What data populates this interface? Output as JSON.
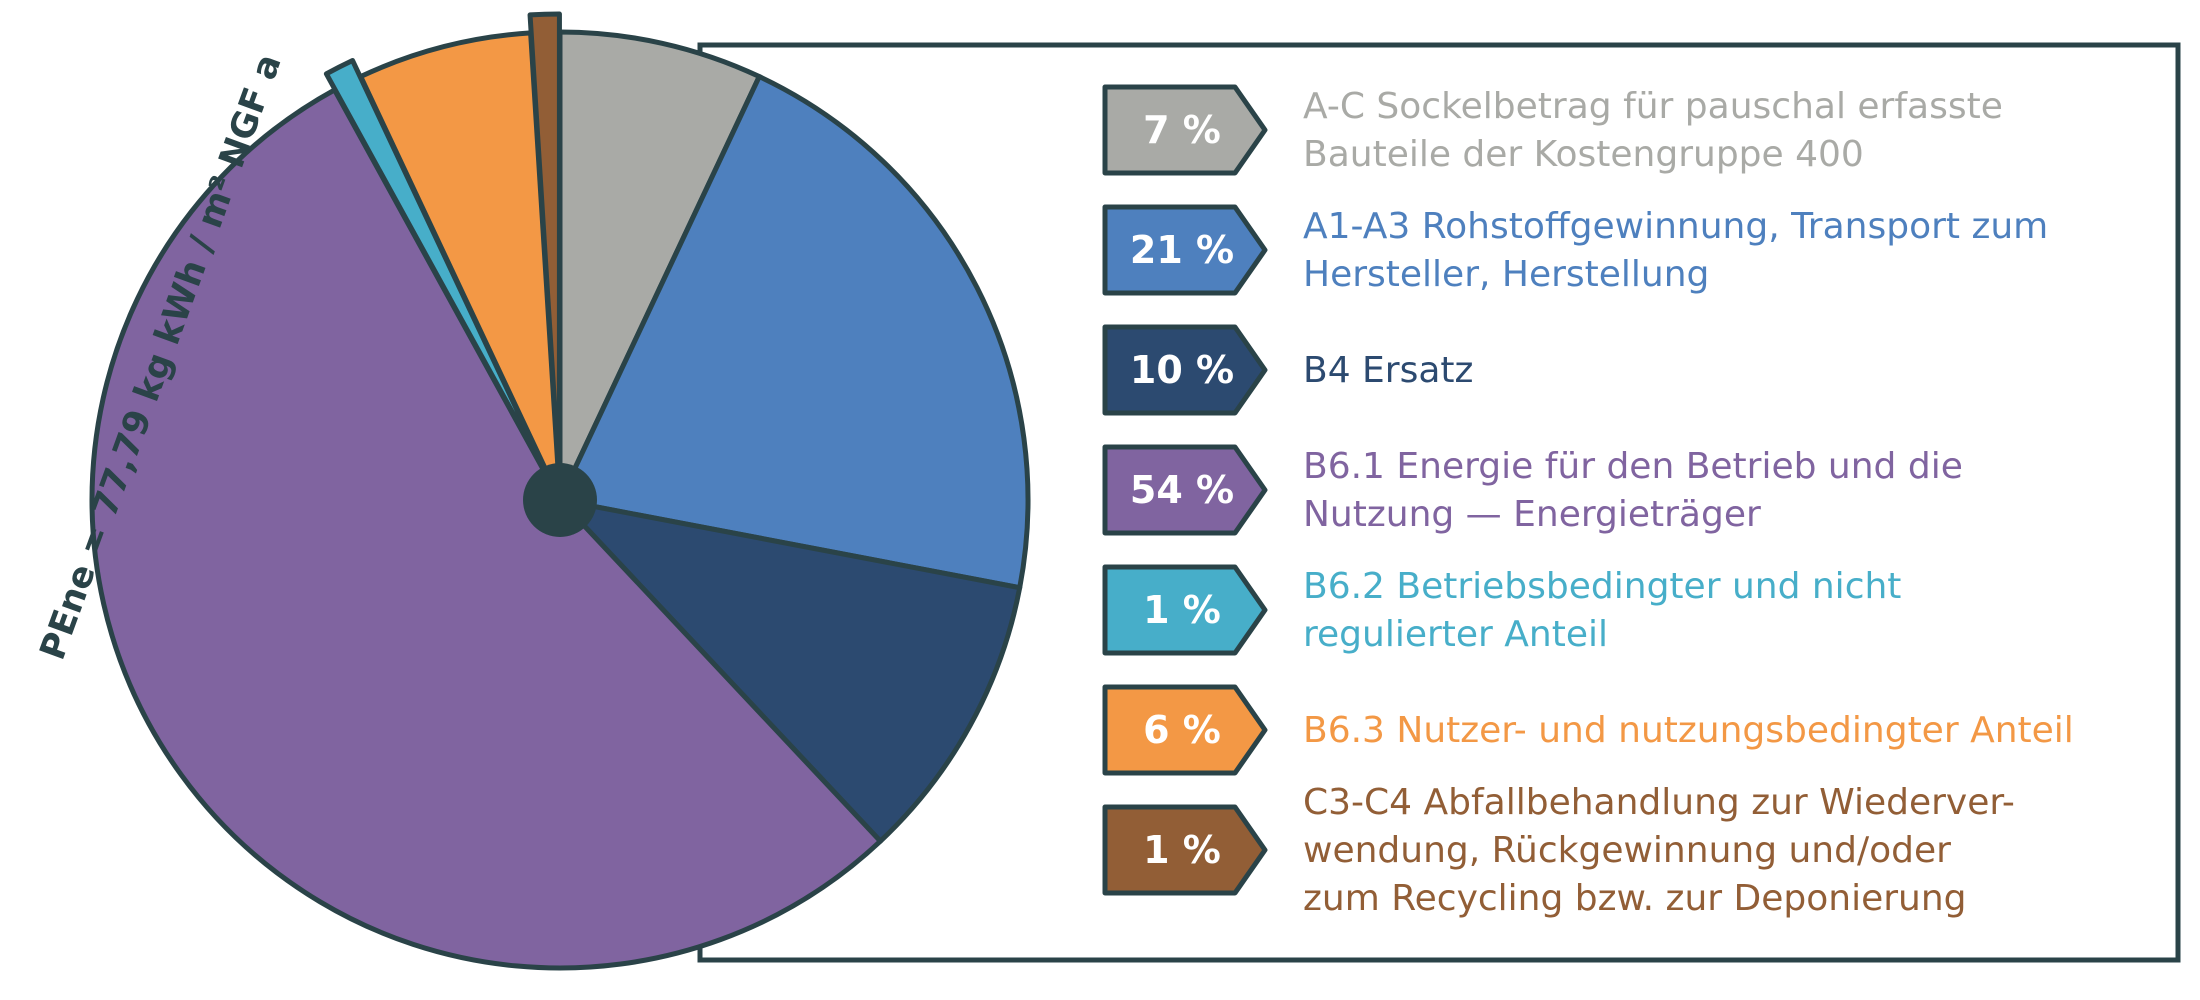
{
  "chart_data": {
    "type": "pie",
    "title": "",
    "axis_label": "PEne = 77,79 kg kWh / m² NGF a",
    "border_color": "#2a4348",
    "slices": [
      {
        "badge": "7 %",
        "value": 7,
        "lines": [
          "A-C Sockelbetrag für pauschal erfasste",
          "Bauteile der Kostengruppe 400"
        ],
        "color": "#a9aaa6",
        "text_color": "#a9aaa6",
        "exploded": false
      },
      {
        "badge": "21 %",
        "value": 21,
        "lines": [
          "A1-A3 Rohstoffgewinnung, Transport zum",
          "Hersteller, Herstellung"
        ],
        "color": "#4e80be",
        "text_color": "#4e80be",
        "exploded": false
      },
      {
        "badge": "10 %",
        "value": 10,
        "lines": [
          "B4 Ersatz"
        ],
        "color": "#2c4a70",
        "text_color": "#2c4a70",
        "exploded": false
      },
      {
        "badge": "54 %",
        "value": 54,
        "lines": [
          "B6.1 Energie für den Betrieb und die",
          "Nutzung — Energieträger"
        ],
        "color": "#8064a0",
        "text_color": "#8064a0",
        "exploded": false
      },
      {
        "badge": "1 %",
        "value": 1,
        "lines": [
          "B6.2 Betriebsbedingter und nicht",
          "regulierter Anteil"
        ],
        "color": "#47aec9",
        "text_color": "#47aec9",
        "exploded": true
      },
      {
        "badge": "6 %",
        "value": 6,
        "lines": [
          "B6.3 Nutzer- und nutzungsbedingter Anteil"
        ],
        "color": "#f39845",
        "text_color": "#f39845",
        "exploded": false
      },
      {
        "badge": "1 %",
        "value": 1,
        "lines": [
          "C3-C4 Abfallbehandlung zur Wiederver-",
          "wendung, Rückgewinnung und/oder",
          "zum Recycling bzw. zur Deponierung"
        ],
        "color": "#925e36",
        "text_color": "#925e36",
        "exploded": true
      }
    ]
  }
}
